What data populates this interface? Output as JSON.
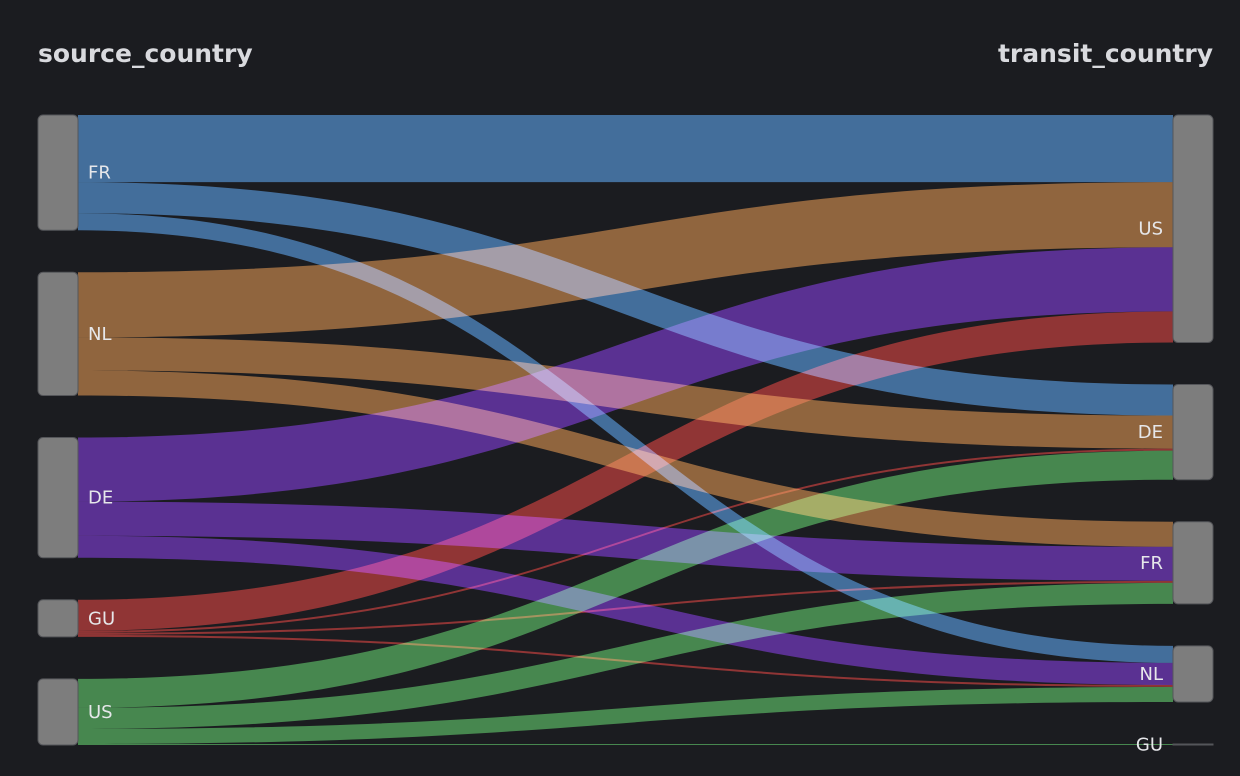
{
  "chart_data": {
    "type": "sankey",
    "columns": {
      "left_title": "source_country",
      "right_title": "transit_country"
    },
    "sources": [
      "FR",
      "NL",
      "DE",
      "GU",
      "US"
    ],
    "targets": [
      "US",
      "DE",
      "FR",
      "NL",
      "GU"
    ],
    "links": [
      {
        "source": "FR",
        "target": "US",
        "value": 67
      },
      {
        "source": "FR",
        "target": "DE",
        "value": 31
      },
      {
        "source": "FR",
        "target": "NL",
        "value": 17
      },
      {
        "source": "NL",
        "target": "US",
        "value": 65
      },
      {
        "source": "NL",
        "target": "DE",
        "value": 33
      },
      {
        "source": "NL",
        "target": "FR",
        "value": 25
      },
      {
        "source": "DE",
        "target": "US",
        "value": 64
      },
      {
        "source": "DE",
        "target": "FR",
        "value": 34
      },
      {
        "source": "DE",
        "target": "NL",
        "value": 22
      },
      {
        "source": "GU",
        "target": "US",
        "value": 31
      },
      {
        "source": "GU",
        "target": "DE",
        "value": 2
      },
      {
        "source": "GU",
        "target": "FR",
        "value": 2
      },
      {
        "source": "GU",
        "target": "NL",
        "value": 2
      },
      {
        "source": "US",
        "target": "DE",
        "value": 29
      },
      {
        "source": "US",
        "target": "FR",
        "value": 21
      },
      {
        "source": "US",
        "target": "NL",
        "value": 15
      },
      {
        "source": "US",
        "target": "GU",
        "value": 1
      }
    ],
    "colors": {
      "FR": "#3a76b5",
      "NL": "#a8692b",
      "DE": "#5b1fa6",
      "GU": "#a8241f",
      "US": "#3f9a45"
    }
  }
}
